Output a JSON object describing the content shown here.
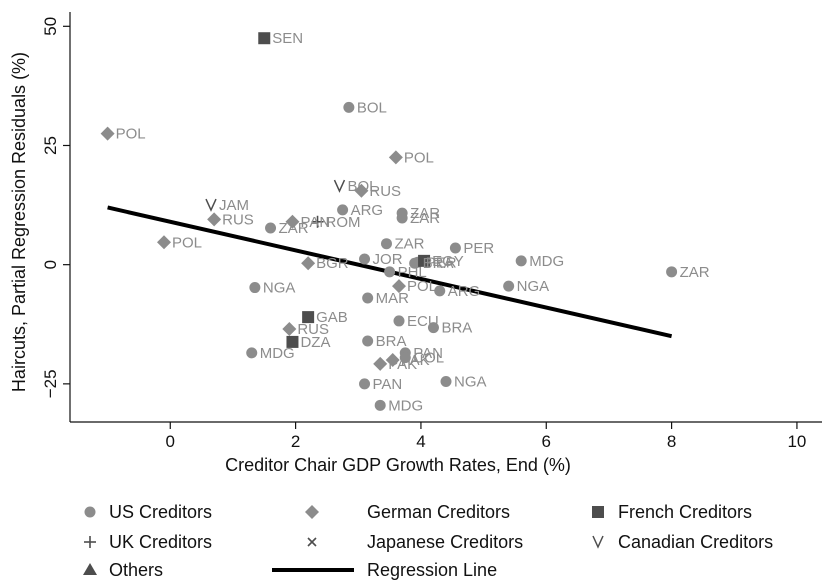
{
  "chart_data": {
    "type": "scatter",
    "xlabel": "Creditor Chair GDP Growth Rates, End (%)",
    "ylabel": "Haircuts, Partial Regression Residuals (%)",
    "xlim": [
      -1.6,
      10.4
    ],
    "ylim": [
      -33,
      53
    ],
    "xticks": [
      {
        "value": 0,
        "label": "0"
      },
      {
        "value": 2,
        "label": "2"
      },
      {
        "value": 4,
        "label": "4"
      },
      {
        "value": 6,
        "label": "6"
      },
      {
        "value": 8,
        "label": "8"
      },
      {
        "value": 10,
        "label": "10"
      }
    ],
    "yticks": [
      {
        "value": -25,
        "label": "−25"
      },
      {
        "value": 0,
        "label": "0"
      },
      {
        "value": 25,
        "label": "25"
      },
      {
        "value": 50,
        "label": "50"
      }
    ],
    "grid": false,
    "legend_position": "bottom",
    "colors": {
      "marker": "#8c8c8c",
      "dark": "#4d4d4d",
      "line": "#000000",
      "text": "#111111",
      "axis": "#111111"
    },
    "series": [
      {
        "name": "US Creditors",
        "marker": "circle",
        "color": "#8c8c8c",
        "points": [
          {
            "x": 2.85,
            "y": 33,
            "label": "BOL"
          },
          {
            "x": 2.75,
            "y": 11.5,
            "label": "ARG"
          },
          {
            "x": 3.7,
            "y": 10.8,
            "label": "ZAR"
          },
          {
            "x": 3.7,
            "y": 9.8,
            "label": "ZAR"
          },
          {
            "x": 1.6,
            "y": 7.7,
            "label": "ZAR"
          },
          {
            "x": 3.45,
            "y": 4.4,
            "label": "ZAR"
          },
          {
            "x": 4.55,
            "y": 3.5,
            "label": "PER"
          },
          {
            "x": 3.1,
            "y": 1.2,
            "label": "JOR"
          },
          {
            "x": 5.6,
            "y": 0.8,
            "label": "MDG"
          },
          {
            "x": 3.95,
            "y": 0.5,
            "label": "PER"
          },
          {
            "x": 3.9,
            "y": 0.3,
            "label": "BRA"
          },
          {
            "x": 3.5,
            "y": -1.5,
            "label": "PHL"
          },
          {
            "x": 8.0,
            "y": -1.5,
            "label": "ZAR"
          },
          {
            "x": 1.35,
            "y": -4.8,
            "label": "NGA"
          },
          {
            "x": 5.4,
            "y": -4.5,
            "label": "NGA"
          },
          {
            "x": 4.3,
            "y": -5.5,
            "label": "ARG"
          },
          {
            "x": 3.15,
            "y": -7.0,
            "label": "MAR"
          },
          {
            "x": 3.65,
            "y": -11.8,
            "label": "ECU"
          },
          {
            "x": 4.2,
            "y": -13.2,
            "label": "BRA"
          },
          {
            "x": 3.15,
            "y": -16.0,
            "label": "BRA"
          },
          {
            "x": 3.75,
            "y": -18.5,
            "label": "PAN"
          },
          {
            "x": 3.75,
            "y": -19.5,
            "label": "COL"
          },
          {
            "x": 1.3,
            "y": -18.5,
            "label": "MDG"
          },
          {
            "x": 4.4,
            "y": -24.5,
            "label": "NGA"
          },
          {
            "x": 3.1,
            "y": -25.0,
            "label": "PAN"
          },
          {
            "x": 3.35,
            "y": -29.5,
            "label": "MDG"
          }
        ]
      },
      {
        "name": "German Creditors",
        "marker": "diamond",
        "color": "#8c8c8c",
        "points": [
          {
            "x": -1.0,
            "y": 27.5,
            "label": "POL"
          },
          {
            "x": 3.6,
            "y": 22.5,
            "label": "POL"
          },
          {
            "x": 3.05,
            "y": 15.5,
            "label": "RUS"
          },
          {
            "x": 0.7,
            "y": 9.5,
            "label": "RUS"
          },
          {
            "x": 1.95,
            "y": 9.0,
            "label": "PAN"
          },
          {
            "x": -0.1,
            "y": 4.7,
            "label": "POL"
          },
          {
            "x": 2.2,
            "y": 0.3,
            "label": "BGR"
          },
          {
            "x": 3.65,
            "y": -4.5,
            "label": "POL"
          },
          {
            "x": 1.9,
            "y": -13.5,
            "label": "RUS"
          },
          {
            "x": 3.55,
            "y": -20.0,
            "label": "PAK"
          },
          {
            "x": 3.35,
            "y": -20.8,
            "label": "PAK"
          }
        ]
      },
      {
        "name": "French Creditors",
        "marker": "square",
        "color": "#4d4d4d",
        "points": [
          {
            "x": 1.5,
            "y": 47.5,
            "label": "SEN"
          },
          {
            "x": 4.05,
            "y": 0.8,
            "label": "EGY"
          },
          {
            "x": 2.2,
            "y": -11.0,
            "label": "GAB"
          },
          {
            "x": 1.95,
            "y": -16.2,
            "label": "DZA"
          }
        ]
      },
      {
        "name": "UK Creditors",
        "marker": "plus",
        "color": "#4d4d4d",
        "points": [
          {
            "x": 2.35,
            "y": 9.0,
            "label": "ROM"
          }
        ]
      },
      {
        "name": "Japanese Creditors",
        "marker": "x",
        "color": "#4d4d4d",
        "points": []
      },
      {
        "name": "Canadian Creditors",
        "marker": "v",
        "color": "#4d4d4d",
        "points": [
          {
            "x": 0.65,
            "y": 12.5,
            "label": "JAM"
          },
          {
            "x": 2.7,
            "y": 16.5,
            "label": "BOL"
          }
        ]
      },
      {
        "name": "Others",
        "marker": "triangle",
        "color": "#4d4d4d",
        "points": []
      }
    ],
    "regression_line": {
      "name": "Regression Line",
      "x": [
        -1.0,
        8.0
      ],
      "y": [
        12.0,
        -15.0
      ]
    },
    "legend": [
      {
        "label": "US Creditors",
        "marker": "circle"
      },
      {
        "label": "German Creditors",
        "marker": "diamond"
      },
      {
        "label": "French Creditors",
        "marker": "square"
      },
      {
        "label": "UK Creditors",
        "marker": "plus"
      },
      {
        "label": "Japanese Creditors",
        "marker": "x"
      },
      {
        "label": "Canadian Creditors",
        "marker": "v"
      },
      {
        "label": "Others",
        "marker": "triangle"
      },
      {
        "label": "Regression Line",
        "marker": "line"
      }
    ]
  }
}
